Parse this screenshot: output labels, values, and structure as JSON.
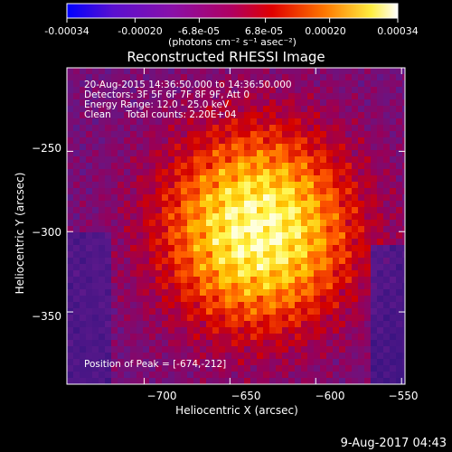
{
  "colorbar": {
    "ticks": [
      "-0.00034",
      "-0.00020",
      "-6.8e-05",
      "6.8e-05",
      "0.00020",
      "0.00034"
    ],
    "tick_values": [
      -0.00034,
      -0.0002,
      -6.8e-05,
      6.8e-05,
      0.0002,
      0.00034
    ],
    "range": [
      -0.00034,
      0.00034
    ],
    "unit_label": "(photons cm⁻² s⁻¹ asec⁻²)"
  },
  "colors": {
    "background": "#000000",
    "colorbar_stops": [
      "#0000ff",
      "#6a00c8",
      "#a000a0",
      "#e00000",
      "#ff8000",
      "#ffff40",
      "#ffffff"
    ]
  },
  "chart_data": {
    "type": "heatmap",
    "title": "Reconstructed RHESSI Image",
    "xlabel": "Heliocentric X (arcsec)",
    "ylabel": "Heliocentric Y (arcsec)",
    "xlim": [
      -745,
      -548
    ],
    "ylim": [
      -395,
      -198
    ],
    "xticks": [
      -700,
      -650,
      -600,
      -550
    ],
    "yticks": [
      -250,
      -300,
      -350
    ],
    "xtick_labels": [
      "−700",
      "−650",
      "−600",
      "−550"
    ],
    "ytick_labels": [
      "−250",
      "−300",
      "−350"
    ],
    "annotations": [
      "20-Aug-2015 14:36:50.000 to 14:36:50.000",
      "Detectors: 3F 5F 6F 7F 8F 9F, Att 0",
      "Energy Range: 12.0 - 25.0 keV",
      "Clean     Total counts: 2.20E+04"
    ],
    "peak_label": "Position of Peak = [-674,-212]",
    "peak_position": [
      -674,
      -212
    ],
    "grid": false
  },
  "footer": {
    "date": "9-Aug-2017 04:43"
  }
}
